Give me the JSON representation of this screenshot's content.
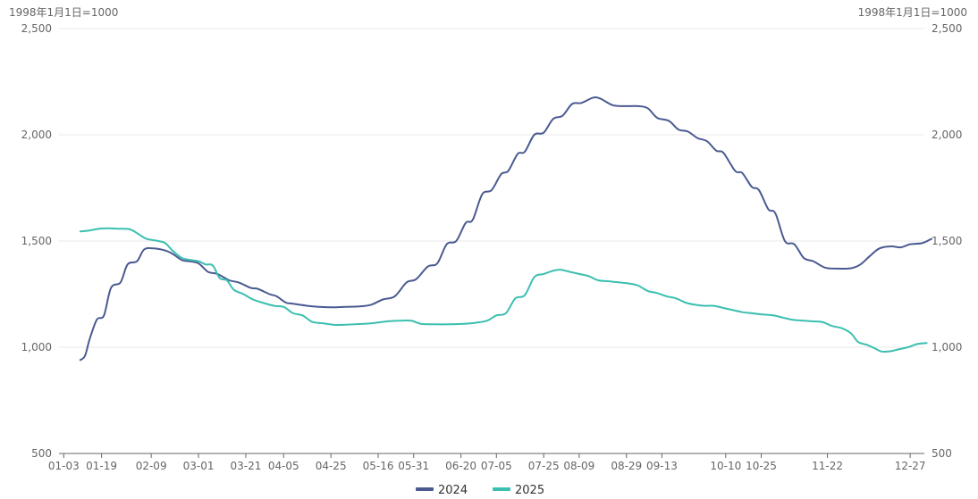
{
  "chart_data": {
    "type": "line",
    "y_unit_left": "1998年1月1日=1000",
    "y_unit_right": "1998年1月1日=1000",
    "ylim": [
      500,
      2500
    ],
    "yticks": [
      "500",
      "1,000",
      "1,500",
      "2,000",
      "2,500"
    ],
    "ytick_values": [
      500,
      1000,
      1500,
      2000,
      2500
    ],
    "xlim": [
      1,
      361
    ],
    "x_ticks": [
      {
        "day": 3,
        "label": "01-03"
      },
      {
        "day": 19,
        "label": "01-19"
      },
      {
        "day": 40,
        "label": "02-09"
      },
      {
        "day": 60,
        "label": "03-01"
      },
      {
        "day": 80,
        "label": "03-21"
      },
      {
        "day": 96,
        "label": "04-05"
      },
      {
        "day": 116,
        "label": "04-25"
      },
      {
        "day": 136,
        "label": "05-16"
      },
      {
        "day": 151,
        "label": "05-31"
      },
      {
        "day": 171,
        "label": "06-20"
      },
      {
        "day": 186,
        "label": "07-05"
      },
      {
        "day": 206,
        "label": "07-25"
      },
      {
        "day": 221,
        "label": "08-09"
      },
      {
        "day": 241,
        "label": "08-29"
      },
      {
        "day": 256,
        "label": "09-13"
      },
      {
        "day": 283,
        "label": "10-10"
      },
      {
        "day": 298,
        "label": "10-25"
      },
      {
        "day": 326,
        "label": "11-22"
      },
      {
        "day": 361,
        "label": "12-27"
      }
    ],
    "grid": true,
    "legend_position": "bottom-center",
    "series": [
      {
        "name": "2024",
        "color": "#4a5a91",
        "points": [
          [
            10,
            940
          ],
          [
            12,
            960
          ],
          [
            14,
            1040
          ],
          [
            17,
            1130
          ],
          [
            20,
            1150
          ],
          [
            23,
            1280
          ],
          [
            27,
            1305
          ],
          [
            30,
            1390
          ],
          [
            34,
            1405
          ],
          [
            37,
            1460
          ],
          [
            41,
            1465
          ],
          [
            46,
            1455
          ],
          [
            49,
            1440
          ],
          [
            53,
            1410
          ],
          [
            56,
            1405
          ],
          [
            60,
            1395
          ],
          [
            64,
            1355
          ],
          [
            68,
            1345
          ],
          [
            73,
            1315
          ],
          [
            77,
            1305
          ],
          [
            82,
            1280
          ],
          [
            85,
            1275
          ],
          [
            90,
            1250
          ],
          [
            93,
            1240
          ],
          [
            97,
            1210
          ],
          [
            100,
            1205
          ],
          [
            106,
            1195
          ],
          [
            111,
            1190
          ],
          [
            117,
            1188
          ],
          [
            122,
            1190
          ],
          [
            128,
            1192
          ],
          [
            133,
            1200
          ],
          [
            138,
            1225
          ],
          [
            143,
            1240
          ],
          [
            148,
            1305
          ],
          [
            152,
            1320
          ],
          [
            157,
            1380
          ],
          [
            161,
            1395
          ],
          [
            165,
            1485
          ],
          [
            169,
            1500
          ],
          [
            173,
            1585
          ],
          [
            176,
            1600
          ],
          [
            180,
            1720
          ],
          [
            184,
            1740
          ],
          [
            188,
            1815
          ],
          [
            191,
            1830
          ],
          [
            195,
            1910
          ],
          [
            198,
            1920
          ],
          [
            202,
            2000
          ],
          [
            206,
            2010
          ],
          [
            210,
            2075
          ],
          [
            214,
            2090
          ],
          [
            218,
            2145
          ],
          [
            222,
            2150
          ],
          [
            227,
            2175
          ],
          [
            230,
            2170
          ],
          [
            235,
            2140
          ],
          [
            240,
            2135
          ],
          [
            246,
            2135
          ],
          [
            250,
            2125
          ],
          [
            254,
            2080
          ],
          [
            259,
            2065
          ],
          [
            263,
            2025
          ],
          [
            267,
            2015
          ],
          [
            271,
            1985
          ],
          [
            275,
            1970
          ],
          [
            279,
            1925
          ],
          [
            282,
            1915
          ],
          [
            287,
            1830
          ],
          [
            290,
            1820
          ],
          [
            294,
            1755
          ],
          [
            297,
            1740
          ],
          [
            301,
            1650
          ],
          [
            304,
            1630
          ],
          [
            308,
            1500
          ],
          [
            312,
            1485
          ],
          [
            316,
            1420
          ],
          [
            320,
            1405
          ],
          [
            325,
            1375
          ],
          [
            330,
            1370
          ],
          [
            336,
            1372
          ],
          [
            340,
            1390
          ],
          [
            344,
            1430
          ],
          [
            348,
            1465
          ],
          [
            353,
            1475
          ],
          [
            357,
            1470
          ],
          [
            361,
            1485
          ],
          [
            366,
            1490
          ],
          [
            370,
            1510
          ]
        ]
      },
      {
        "name": "2025",
        "color": "#3bbfb0",
        "points": [
          [
            10,
            1545
          ],
          [
            14,
            1550
          ],
          [
            18,
            1558
          ],
          [
            22,
            1560
          ],
          [
            26,
            1558
          ],
          [
            31,
            1555
          ],
          [
            35,
            1530
          ],
          [
            38,
            1510
          ],
          [
            43,
            1500
          ],
          [
            46,
            1490
          ],
          [
            49,
            1455
          ],
          [
            53,
            1420
          ],
          [
            57,
            1410
          ],
          [
            60,
            1405
          ],
          [
            63,
            1390
          ],
          [
            66,
            1385
          ],
          [
            69,
            1325
          ],
          [
            72,
            1315
          ],
          [
            75,
            1270
          ],
          [
            79,
            1250
          ],
          [
            83,
            1225
          ],
          [
            87,
            1210
          ],
          [
            92,
            1195
          ],
          [
            96,
            1190
          ],
          [
            100,
            1160
          ],
          [
            104,
            1150
          ],
          [
            108,
            1120
          ],
          [
            113,
            1112
          ],
          [
            118,
            1105
          ],
          [
            124,
            1107
          ],
          [
            130,
            1110
          ],
          [
            135,
            1115
          ],
          [
            140,
            1122
          ],
          [
            145,
            1125
          ],
          [
            150,
            1125
          ],
          [
            154,
            1110
          ],
          [
            160,
            1108
          ],
          [
            166,
            1108
          ],
          [
            172,
            1110
          ],
          [
            177,
            1115
          ],
          [
            182,
            1125
          ],
          [
            186,
            1150
          ],
          [
            190,
            1160
          ],
          [
            194,
            1230
          ],
          [
            198,
            1245
          ],
          [
            202,
            1330
          ],
          [
            206,
            1345
          ],
          [
            210,
            1360
          ],
          [
            213,
            1365
          ],
          [
            217,
            1355
          ],
          [
            221,
            1345
          ],
          [
            225,
            1335
          ],
          [
            229,
            1315
          ],
          [
            234,
            1310
          ],
          [
            238,
            1305
          ],
          [
            242,
            1300
          ],
          [
            246,
            1290
          ],
          [
            250,
            1265
          ],
          [
            254,
            1255
          ],
          [
            258,
            1240
          ],
          [
            262,
            1230
          ],
          [
            266,
            1210
          ],
          [
            270,
            1200
          ],
          [
            274,
            1195
          ],
          [
            278,
            1195
          ],
          [
            282,
            1185
          ],
          [
            286,
            1175
          ],
          [
            290,
            1165
          ],
          [
            294,
            1160
          ],
          [
            298,
            1155
          ],
          [
            303,
            1150
          ],
          [
            307,
            1140
          ],
          [
            311,
            1130
          ],
          [
            316,
            1125
          ],
          [
            320,
            1122
          ],
          [
            324,
            1118
          ],
          [
            328,
            1100
          ],
          [
            332,
            1090
          ],
          [
            336,
            1065
          ],
          [
            339,
            1025
          ],
          [
            343,
            1010
          ],
          [
            346,
            995
          ],
          [
            349,
            980
          ],
          [
            353,
            982
          ],
          [
            356,
            990
          ],
          [
            360,
            1000
          ],
          [
            364,
            1015
          ],
          [
            368,
            1020
          ]
        ]
      }
    ]
  }
}
